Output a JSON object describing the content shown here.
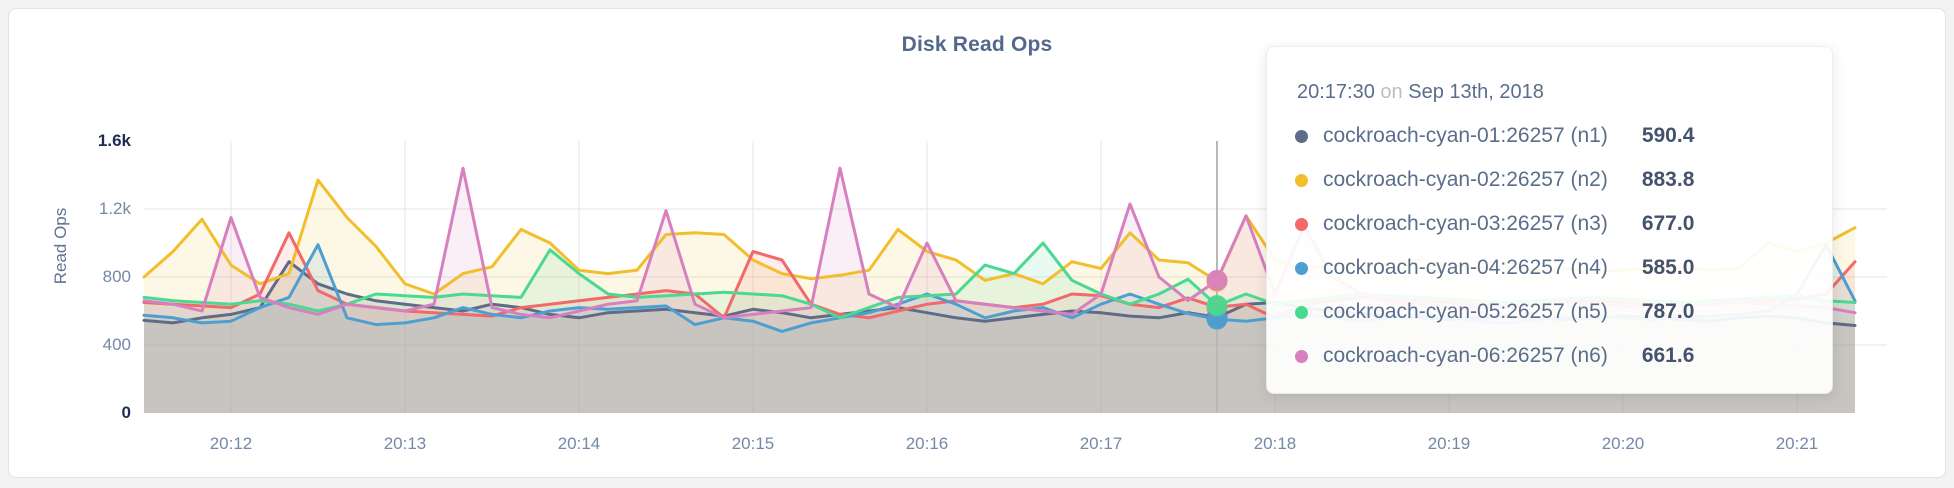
{
  "page": {
    "background": "#f3f3f4"
  },
  "chart_data": {
    "type": "line",
    "title": "Disk Read Ops",
    "ylabel": "Read Ops",
    "ylim": [
      0,
      1600
    ],
    "grid": true,
    "legend_position": "tooltip",
    "y_ticks": [
      {
        "value": 0,
        "label": "0",
        "emphasis": true,
        "grid": false
      },
      {
        "value": 400,
        "label": "400",
        "emphasis": false,
        "grid": true
      },
      {
        "value": 800,
        "label": "800",
        "emphasis": false,
        "grid": true
      },
      {
        "value": 1200,
        "label": "1.2k",
        "emphasis": false,
        "grid": true
      },
      {
        "value": 1600,
        "label": "1.6k",
        "emphasis": true,
        "grid": false
      }
    ],
    "x_tick_labels": [
      "20:12",
      "20:13",
      "20:14",
      "20:15",
      "20:16",
      "20:17",
      "20:18",
      "20:19",
      "20:20",
      "20:21"
    ],
    "crosshair_time": "20:17:40",
    "x": [
      "20:11:30",
      "20:11:40",
      "20:11:50",
      "20:12:00",
      "20:12:10",
      "20:12:20",
      "20:12:30",
      "20:12:40",
      "20:12:50",
      "20:13:00",
      "20:13:10",
      "20:13:20",
      "20:13:30",
      "20:13:40",
      "20:13:50",
      "20:14:00",
      "20:14:10",
      "20:14:20",
      "20:14:30",
      "20:14:40",
      "20:14:50",
      "20:15:00",
      "20:15:10",
      "20:15:20",
      "20:15:30",
      "20:15:40",
      "20:15:50",
      "20:16:00",
      "20:16:10",
      "20:16:20",
      "20:16:30",
      "20:16:40",
      "20:16:50",
      "20:17:00",
      "20:17:10",
      "20:17:20",
      "20:17:30",
      "20:17:40",
      "20:17:50",
      "20:18:00",
      "20:18:10",
      "20:18:20",
      "20:18:30",
      "20:18:40",
      "20:18:50",
      "20:19:00",
      "20:19:10",
      "20:19:20",
      "20:19:30",
      "20:19:40",
      "20:19:50",
      "20:20:00",
      "20:20:10",
      "20:20:20",
      "20:20:30",
      "20:20:40",
      "20:20:50",
      "20:21:00",
      "20:21:10",
      "20:21:20"
    ],
    "series": [
      {
        "name": "cockroach-cyan-01:26257 (n1)",
        "color": "#5F6C87",
        "values": [
          545,
          530,
          560,
          580,
          620,
          890,
          760,
          700,
          660,
          640,
          620,
          600,
          640,
          620,
          580,
          560,
          590,
          600,
          610,
          590,
          570,
          610,
          590,
          560,
          580,
          600,
          620,
          590,
          560,
          540,
          560,
          580,
          600,
          590,
          570,
          560,
          590.4,
          562,
          640,
          650,
          620,
          600,
          580,
          570,
          560,
          550,
          560,
          570,
          560,
          550,
          560,
          570,
          560,
          550,
          540,
          560,
          570,
          560,
          530,
          515
        ]
      },
      {
        "name": "cockroach-cyan-02:26257 (n2)",
        "color": "#F2BE2C",
        "values": [
          800,
          950,
          1140,
          870,
          760,
          820,
          1370,
          1150,
          980,
          760,
          700,
          820,
          860,
          1080,
          1000,
          840,
          820,
          840,
          1050,
          1060,
          1050,
          900,
          820,
          790,
          810,
          840,
          1080,
          950,
          900,
          780,
          820,
          760,
          890,
          850,
          1060,
          900,
          883.8,
          775,
          1160,
          900,
          850,
          870,
          860,
          880,
          900,
          870,
          850,
          860,
          840,
          850,
          830,
          840,
          850,
          860,
          840,
          850,
          1000,
          950,
          1000,
          1090
        ]
      },
      {
        "name": "cockroach-cyan-03:26257 (n3)",
        "color": "#F16969",
        "values": [
          650,
          640,
          630,
          620,
          700,
          1060,
          720,
          640,
          620,
          600,
          590,
          580,
          570,
          620,
          640,
          660,
          680,
          700,
          720,
          700,
          560,
          950,
          900,
          640,
          580,
          560,
          600,
          640,
          660,
          640,
          620,
          640,
          700,
          690,
          640,
          620,
          677,
          622,
          640,
          560,
          640,
          660,
          680,
          670,
          660,
          650,
          640,
          630,
          640,
          650,
          660,
          650,
          640,
          630,
          640,
          650,
          660,
          670,
          700,
          890
        ]
      },
      {
        "name": "cockroach-cyan-04:26257 (n4)",
        "color": "#4E9FD1",
        "values": [
          575,
          560,
          530,
          540,
          620,
          680,
          990,
          560,
          520,
          530,
          560,
          620,
          580,
          560,
          600,
          620,
          610,
          620,
          630,
          520,
          560,
          540,
          480,
          530,
          560,
          590,
          640,
          700,
          640,
          560,
          600,
          620,
          560,
          640,
          700,
          640,
          585,
          552,
          540,
          560,
          580,
          560,
          540,
          560,
          580,
          560,
          540,
          530,
          550,
          560,
          570,
          560,
          550,
          560,
          570,
          580,
          600,
          700,
          990,
          660
        ]
      },
      {
        "name": "cockroach-cyan-05:26257 (n5)",
        "color": "#49D990",
        "values": [
          680,
          660,
          650,
          640,
          660,
          640,
          600,
          640,
          700,
          690,
          680,
          700,
          690,
          680,
          960,
          820,
          700,
          680,
          690,
          700,
          710,
          700,
          690,
          640,
          560,
          620,
          680,
          690,
          700,
          870,
          820,
          1000,
          780,
          700,
          640,
          700,
          787,
          632,
          700,
          640,
          660,
          680,
          700,
          690,
          680,
          670,
          660,
          650,
          660,
          670,
          680,
          670,
          660,
          650,
          660,
          670,
          680,
          690,
          660,
          650
        ]
      },
      {
        "name": "cockroach-cyan-06:26257 (n6)",
        "color": "#D77FBF",
        "values": [
          660,
          640,
          600,
          1150,
          680,
          620,
          580,
          640,
          620,
          600,
          640,
          1440,
          620,
          580,
          560,
          600,
          640,
          660,
          1190,
          640,
          560,
          580,
          600,
          620,
          1440,
          700,
          620,
          1000,
          660,
          640,
          620,
          600,
          580,
          700,
          1230,
          800,
          661.6,
          780,
          1160,
          700,
          1100,
          800,
          700,
          650,
          640,
          630,
          620,
          630,
          640,
          650,
          640,
          630,
          620,
          630,
          640,
          650,
          640,
          630,
          620,
          590
        ]
      }
    ]
  },
  "tooltip": {
    "time": "20:17:30",
    "connector": "on",
    "date": "Sep 13th, 2018",
    "rows": [
      {
        "label": "cockroach-cyan-01:26257 (n1)",
        "value": "590.4",
        "color": "#5F6C87"
      },
      {
        "label": "cockroach-cyan-02:26257 (n2)",
        "value": "883.8",
        "color": "#F2BE2C"
      },
      {
        "label": "cockroach-cyan-03:26257 (n3)",
        "value": "677.0",
        "color": "#F16969"
      },
      {
        "label": "cockroach-cyan-04:26257 (n4)",
        "value": "585.0",
        "color": "#4E9FD1"
      },
      {
        "label": "cockroach-cyan-05:26257 (n5)",
        "value": "787.0",
        "color": "#49D990"
      },
      {
        "label": "cockroach-cyan-06:26257 (n6)",
        "value": "661.6",
        "color": "#D77FBF"
      }
    ]
  }
}
